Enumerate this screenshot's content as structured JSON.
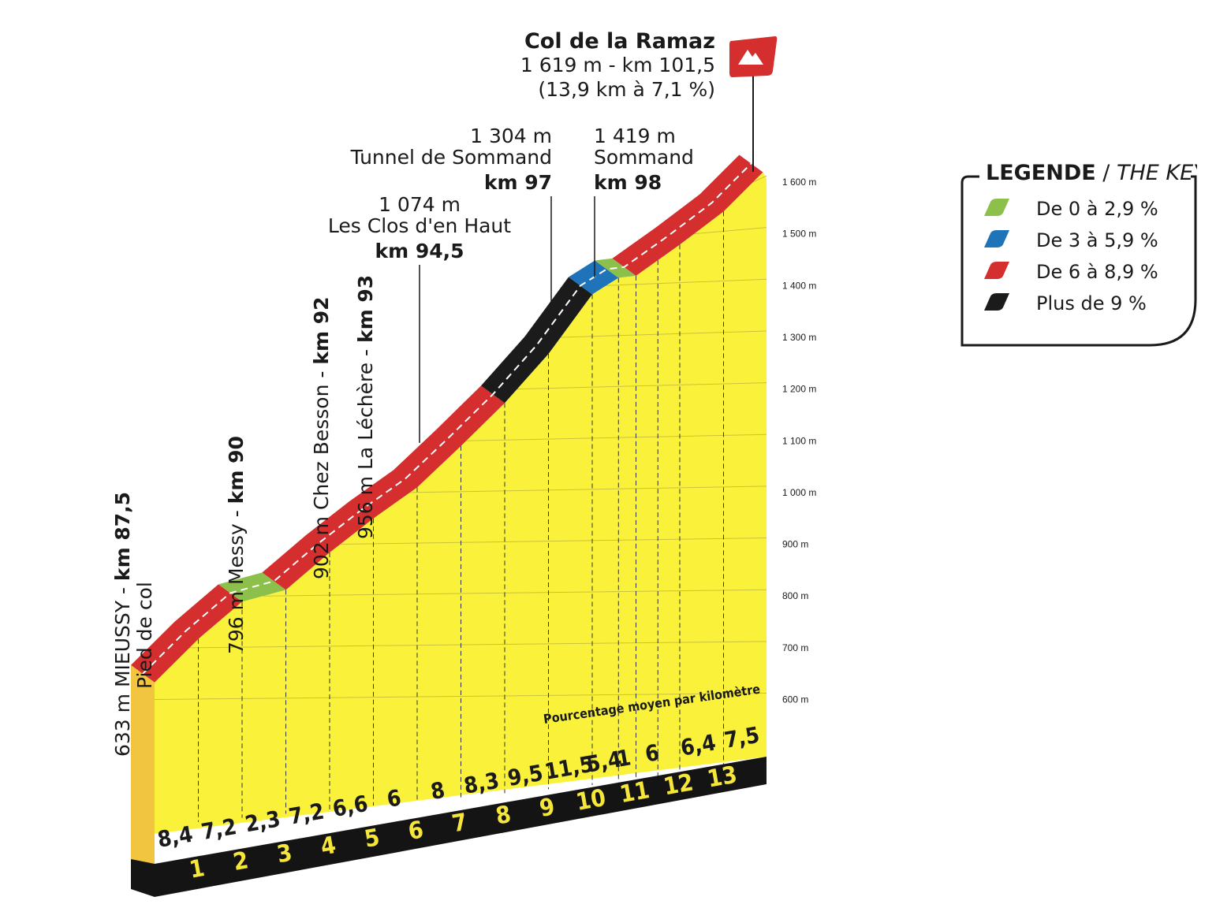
{
  "chart_data": {
    "type": "area",
    "title": "Col de la Ramaz",
    "summit": {
      "name": "Col de la Ramaz",
      "elevation_km": "1 619 m - km 101,5",
      "climb": "(13,9 km à 7,1 %)"
    },
    "y_ticks": [
      "600 m",
      "700 m",
      "800 m",
      "900 m",
      "1 000 m",
      "1 100 m",
      "1 200 m",
      "1 300 m",
      "1 400 m",
      "1 500 m",
      "1 600 m"
    ],
    "ylim": [
      450,
      1650
    ],
    "xlim": [
      0,
      13.9
    ],
    "km_labels": [
      "1",
      "2",
      "3",
      "4",
      "5",
      "6",
      "7",
      "8",
      "9",
      "10",
      "11",
      "12",
      "13"
    ],
    "gradients": [
      "8,4",
      "7,2",
      "2,3",
      "7,2",
      "6,6",
      "6",
      "8",
      "8,3",
      "9,5",
      "11,5",
      "5,4",
      "1",
      "6",
      "6,4",
      "7,5"
    ],
    "gradient_km": [
      0.5,
      1.5,
      2.5,
      3.5,
      4.5,
      5.5,
      6.5,
      7.5,
      8.5,
      9.5,
      10.3,
      10.75,
      11.4,
      12.45,
      13.45
    ],
    "profile": [
      {
        "km": 0,
        "alt": 633
      },
      {
        "km": 1,
        "alt": 717
      },
      {
        "km": 2,
        "alt": 789
      },
      {
        "km": 3,
        "alt": 812
      },
      {
        "km": 4,
        "alt": 884
      },
      {
        "km": 5,
        "alt": 950
      },
      {
        "km": 6,
        "alt": 1010
      },
      {
        "km": 7,
        "alt": 1090
      },
      {
        "km": 8,
        "alt": 1173
      },
      {
        "km": 9,
        "alt": 1268
      },
      {
        "km": 10,
        "alt": 1383
      },
      {
        "km": 10.6,
        "alt": 1415
      },
      {
        "km": 11,
        "alt": 1419
      },
      {
        "km": 12,
        "alt": 1479
      },
      {
        "km": 13,
        "alt": 1543
      },
      {
        "km": 13.9,
        "alt": 1619
      }
    ],
    "segments": [
      {
        "from": 0,
        "to": 2,
        "cat": "red"
      },
      {
        "from": 2,
        "to": 3,
        "cat": "green"
      },
      {
        "from": 3,
        "to": 8,
        "cat": "red"
      },
      {
        "from": 8,
        "to": 10,
        "cat": "black"
      },
      {
        "from": 10,
        "to": 10.6,
        "cat": "blue"
      },
      {
        "from": 10.6,
        "to": 11,
        "cat": "green"
      },
      {
        "from": 11,
        "to": 13.9,
        "cat": "red"
      }
    ],
    "waypoints": [
      {
        "km": 0,
        "line1_normal": "633 m MIEUSSY - ",
        "line1_bold": "km 87,5",
        "line2": "Pied de col",
        "vertical": true
      },
      {
        "km": 2.5,
        "line1_normal": "796 m  Messy - ",
        "line1_bold": "km 90",
        "vertical": true
      },
      {
        "km": 4.5,
        "line1_normal": "902 m Chez Besson - ",
        "line1_bold": "km 92",
        "vertical": true
      },
      {
        "km": 5.5,
        "line1_normal": "956 m La Léchère - ",
        "line1_bold": "km 93",
        "vertical": true
      },
      {
        "km": 7,
        "alt_label": "1 074 m",
        "name": "Les Clos d'en Haut",
        "km_label": "km 94,5",
        "vertical": false
      },
      {
        "km": 9.5,
        "alt_label": "1 304 m",
        "name": "Tunnel de Sommand",
        "km_label": "km 97",
        "vertical": false,
        "align": "right"
      },
      {
        "km": 10.5,
        "alt_label": "1 419 m",
        "name": "Sommand",
        "km_label": "km 98",
        "vertical": false,
        "align": "left"
      }
    ],
    "note": "Pourcentage moyen par kilomètre",
    "colors": {
      "red": "#d42e2e",
      "green": "#8cc04a",
      "blue": "#1f73b8",
      "black": "#1b1b1b",
      "fill": "#faf23a",
      "base": "#f2c540",
      "footer": "#141414"
    }
  },
  "legend": {
    "title_bold": "LÉGENDE",
    "title_sep": " / ",
    "title_italic": "THE KEY",
    "items": [
      {
        "label": "De 0 à 2,9 %",
        "color": "#8cc04a"
      },
      {
        "label": "De 3 à 5,9 %",
        "color": "#1f73b8"
      },
      {
        "label": "De 6 à 8,9 %",
        "color": "#d42e2e"
      },
      {
        "label": "Plus de 9 %",
        "color": "#1b1b1b"
      }
    ]
  }
}
